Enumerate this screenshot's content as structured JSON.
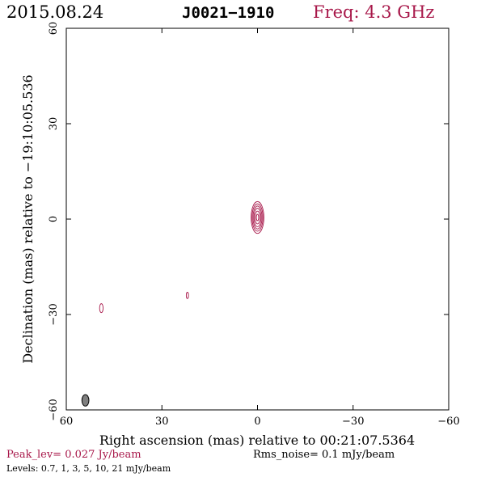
{
  "header": {
    "date": "2015.08.24",
    "source": "J0021−1910",
    "freq": "Freq: 4.3 GHz"
  },
  "colors": {
    "accent": "#a8184a",
    "axis": "#000000",
    "beam": "#7f7f7f"
  },
  "footer": {
    "peak": "Peak_lev=  0.027 Jy/beam",
    "rms": "Rms_noise=  0.1 mJy/beam",
    "levels": "Levels: 0.7,    1,    3,    5,   10,   21  mJy/beam"
  },
  "chart_data": {
    "type": "contour",
    "xlabel": "Right ascension (mas) relative to 00:21:07.5364",
    "ylabel": "Declination (mas) relative to −19:10:05.536",
    "xlim": [
      60,
      -60
    ],
    "ylim": [
      -60,
      60
    ],
    "xticks": [
      60,
      30,
      0,
      -30,
      -60
    ],
    "yticks": [
      -60,
      -30,
      0,
      30,
      60
    ],
    "xtick_labels": [
      "60",
      "30",
      "0",
      "−30",
      "−60"
    ],
    "ytick_labels": [
      "−60",
      "−30",
      "0",
      "30",
      "60"
    ],
    "contour_levels_mJy": [
      0.7,
      1,
      3,
      5,
      10,
      21
    ],
    "components": [
      {
        "x": 0.0,
        "y": 0.5,
        "contours": [
          {
            "rx": 2.0,
            "ry": 5.0
          },
          {
            "rx": 1.7,
            "ry": 4.3
          },
          {
            "rx": 1.4,
            "ry": 3.6
          },
          {
            "rx": 1.1,
            "ry": 2.9
          },
          {
            "rx": 0.75,
            "ry": 2.0
          },
          {
            "rx": 0.35,
            "ry": 1.0
          }
        ]
      },
      {
        "x": 49.0,
        "y": -28.0,
        "contours": [
          {
            "rx": 0.55,
            "ry": 1.4
          }
        ]
      },
      {
        "x": 22.0,
        "y": -24.0,
        "contours": [
          {
            "rx": 0.35,
            "ry": 1.0
          }
        ]
      }
    ],
    "beam": {
      "x": 54.0,
      "y": -57.0,
      "rx": 1.1,
      "ry": 1.8
    }
  }
}
